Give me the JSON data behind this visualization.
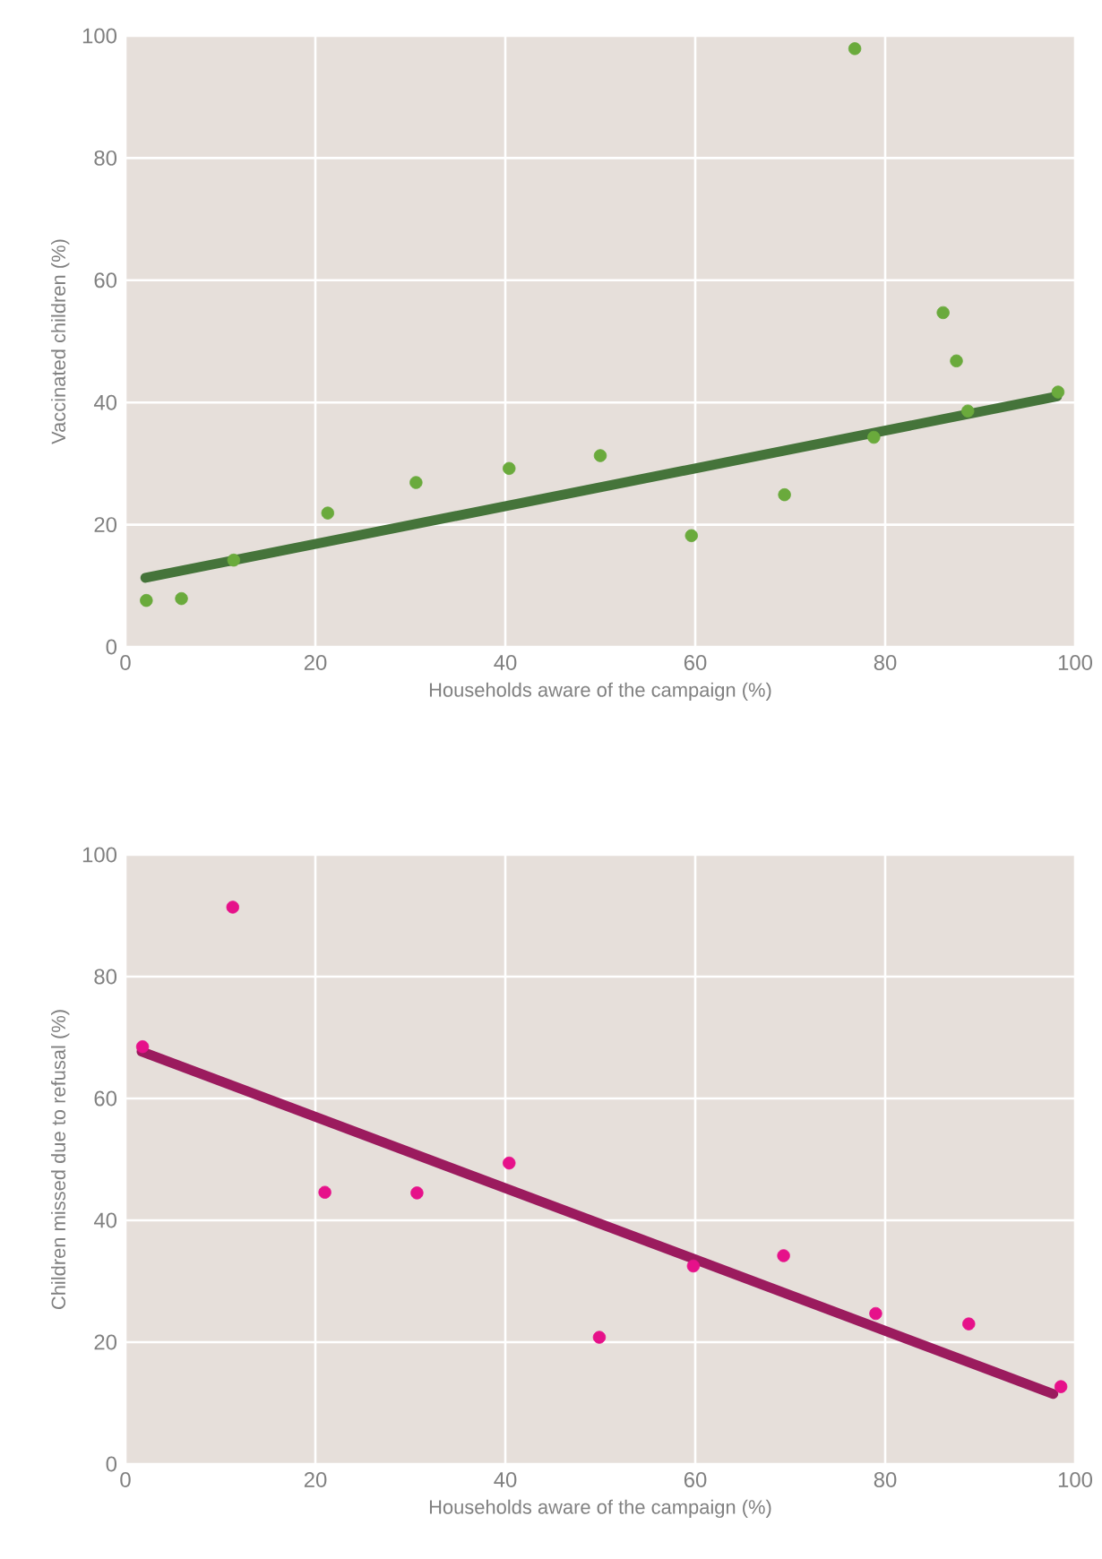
{
  "chart_data": [
    {
      "type": "scatter",
      "xlabel": "Households aware of the campaign (%)",
      "ylabel": "Vaccinated children (%)",
      "xlim": [
        0,
        100
      ],
      "ylim": [
        0,
        100
      ],
      "xticks": [
        0,
        20,
        40,
        60,
        80,
        100
      ],
      "yticks": [
        0,
        20,
        40,
        60,
        80,
        100
      ],
      "grid": true,
      "marker": "circle",
      "series": [
        {
          "color": "#6aaa3c",
          "x": [
            2.2,
            5.9,
            11.4,
            21.3,
            30.6,
            40.4,
            50.0,
            59.6,
            69.4,
            76.8,
            78.8,
            86.1,
            87.5,
            88.7,
            98.2
          ],
          "values": [
            7.6,
            7.9,
            14.2,
            21.9,
            26.9,
            29.2,
            31.3,
            18.2,
            24.9,
            97.9,
            34.3,
            54.7,
            46.8,
            38.6,
            41.7
          ]
        },
        {
          "type": "line",
          "color": "#45743a",
          "marker": "none",
          "x": [
            2.1,
            98.1
          ],
          "values": [
            11.3,
            41.0
          ]
        }
      ]
    },
    {
      "type": "scatter",
      "xlabel": "Households aware of the campaign (%)",
      "ylabel": "Children missed due to refusal (%)",
      "xlim": [
        0,
        100
      ],
      "ylim": [
        0,
        100
      ],
      "xticks": [
        0,
        20,
        40,
        60,
        80,
        100
      ],
      "yticks": [
        0,
        20,
        40,
        60,
        80,
        100
      ],
      "grid": true,
      "marker": "circle",
      "series": [
        {
          "color": "#e6118a",
          "x": [
            1.8,
            11.3,
            21.0,
            30.7,
            40.4,
            49.9,
            59.8,
            69.3,
            79.0,
            88.8,
            98.5
          ],
          "values": [
            68.5,
            91.4,
            44.6,
            44.5,
            49.4,
            20.8,
            32.5,
            34.2,
            24.7,
            23.0,
            12.7
          ]
        },
        {
          "type": "line",
          "color": "#9b1b5e",
          "marker": "none",
          "x": [
            1.7,
            97.7
          ],
          "values": [
            67.7,
            11.5
          ]
        }
      ]
    }
  ]
}
